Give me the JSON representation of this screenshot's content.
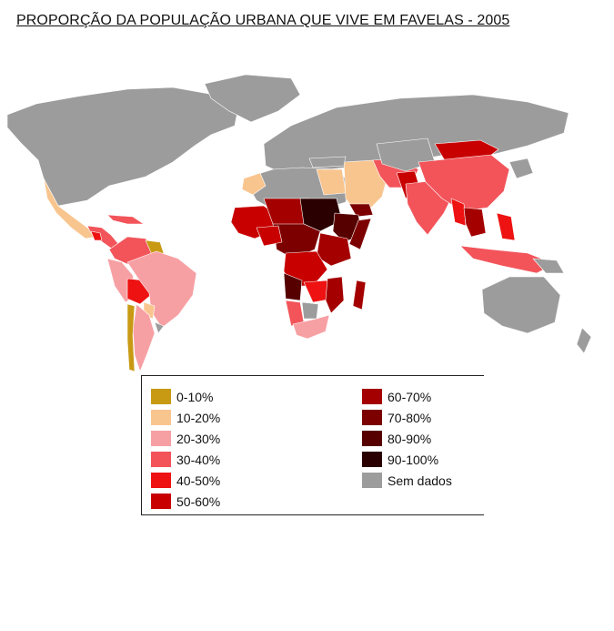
{
  "title": "PROPORÇÃO DA POPULAÇÃO URBANA QUE VIVE EM FAVELAS - 2005",
  "legend": {
    "left": [
      {
        "label": "0-10%",
        "color": "#c89a14"
      },
      {
        "label": "10-20%",
        "color": "#f9c58f"
      },
      {
        "label": "20-30%",
        "color": "#f7a0a4"
      },
      {
        "label": "30-40%",
        "color": "#f2545a"
      },
      {
        "label": "40-50%",
        "color": "#ee1212"
      },
      {
        "label": "50-60%",
        "color": "#c80000"
      }
    ],
    "right": [
      {
        "label": "60-70%",
        "color": "#a40000"
      },
      {
        "label": "70-80%",
        "color": "#7c0000"
      },
      {
        "label": "80-90%",
        "color": "#560000"
      },
      {
        "label": "90-100%",
        "color": "#2a0000"
      },
      {
        "label": "Sem dados",
        "color": "#9c9c9c"
      }
    ]
  }
}
